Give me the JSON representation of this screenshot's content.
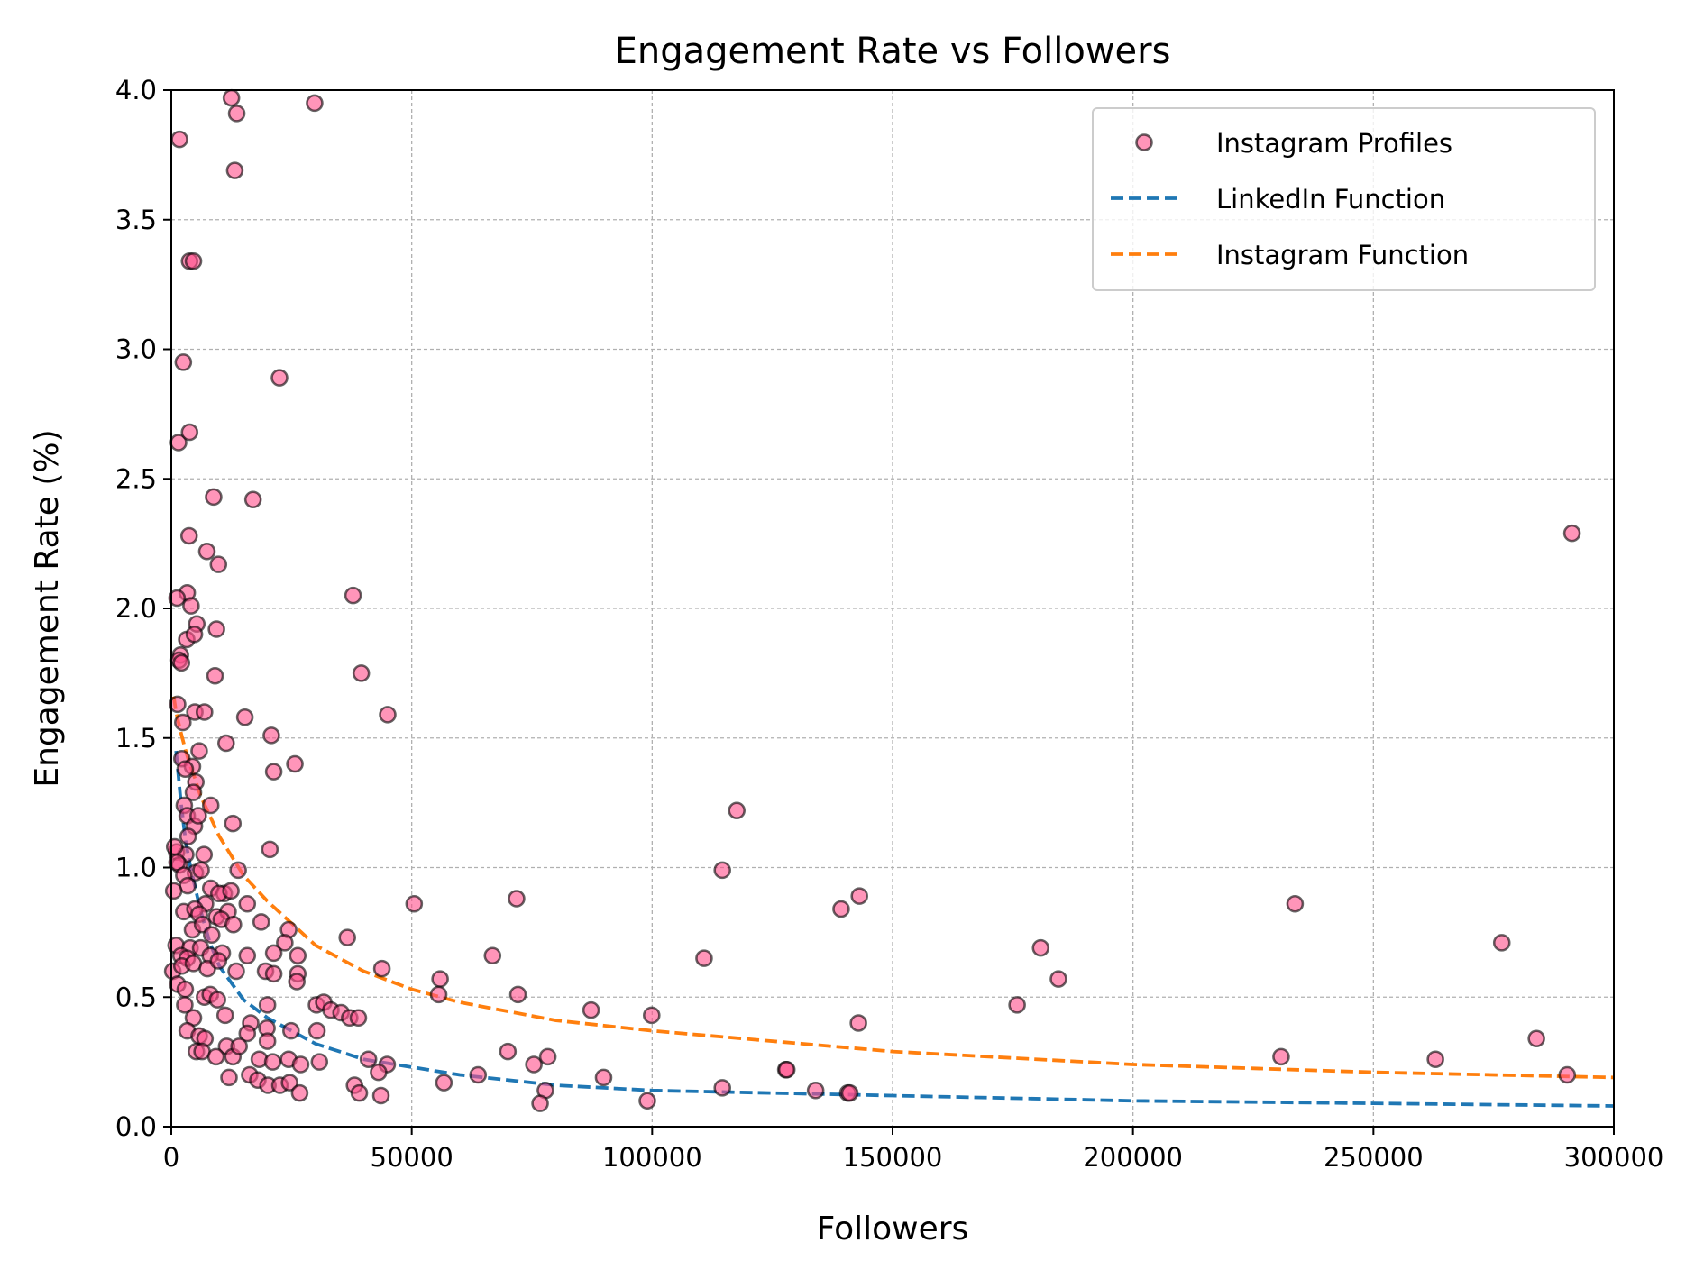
{
  "chart_data": {
    "type": "scatter",
    "title": "Engagement Rate vs Followers",
    "xlabel": "Followers",
    "ylabel": "Engagement Rate (%)",
    "xlim": [
      0,
      300000
    ],
    "ylim": [
      0,
      4.0
    ],
    "x_ticks": [
      "0",
      "50000",
      "100000",
      "150000",
      "200000",
      "250000",
      "300000"
    ],
    "y_ticks": [
      "0.0",
      "0.5",
      "1.0",
      "1.5",
      "2.0",
      "2.5",
      "3.0",
      "3.5",
      "4.0"
    ],
    "grid": true,
    "legend_position": "top-right",
    "series": [
      {
        "name": "Instagram Profiles",
        "kind": "scatter",
        "color": "#ff4f8b",
        "edge_color": "#000000",
        "points": [
          [
            1700,
            3.81
          ],
          [
            12500,
            3.97
          ],
          [
            13600,
            3.91
          ],
          [
            29800,
            3.95
          ],
          [
            13200,
            3.69
          ],
          [
            3800,
            3.34
          ],
          [
            4600,
            3.34
          ],
          [
            2500,
            2.95
          ],
          [
            22500,
            2.89
          ],
          [
            1500,
            2.64
          ],
          [
            3800,
            2.68
          ],
          [
            8800,
            2.43
          ],
          [
            17000,
            2.42
          ],
          [
            3700,
            2.28
          ],
          [
            7400,
            2.22
          ],
          [
            9800,
            2.17
          ],
          [
            3300,
            2.06
          ],
          [
            1200,
            2.04
          ],
          [
            4100,
            2.01
          ],
          [
            37800,
            2.05
          ],
          [
            5300,
            1.94
          ],
          [
            3200,
            1.88
          ],
          [
            9400,
            1.92
          ],
          [
            4800,
            1.9
          ],
          [
            1900,
            1.82
          ],
          [
            1600,
            1.8
          ],
          [
            2100,
            1.79
          ],
          [
            39500,
            1.75
          ],
          [
            9100,
            1.74
          ],
          [
            4900,
            1.6
          ],
          [
            6900,
            1.6
          ],
          [
            15300,
            1.58
          ],
          [
            45000,
            1.59
          ],
          [
            1300,
            1.63
          ],
          [
            2400,
            1.56
          ],
          [
            20800,
            1.51
          ],
          [
            11400,
            1.48
          ],
          [
            5800,
            1.45
          ],
          [
            2200,
            1.42
          ],
          [
            4400,
            1.39
          ],
          [
            21300,
            1.37
          ],
          [
            25700,
            1.4
          ],
          [
            5100,
            1.33
          ],
          [
            2900,
            1.38
          ],
          [
            4600,
            1.29
          ],
          [
            8200,
            1.24
          ],
          [
            2700,
            1.24
          ],
          [
            3300,
            1.2
          ],
          [
            4800,
            1.16
          ],
          [
            5600,
            1.2
          ],
          [
            12800,
            1.17
          ],
          [
            3500,
            1.12
          ],
          [
            20500,
            1.07
          ],
          [
            1100,
            1.06
          ],
          [
            3000,
            1.05
          ],
          [
            6800,
            1.05
          ],
          [
            700,
            1.08
          ],
          [
            1700,
            1.01
          ],
          [
            1200,
            1.02
          ],
          [
            5000,
            0.98
          ],
          [
            6200,
            0.99
          ],
          [
            13900,
            0.99
          ],
          [
            2600,
            0.97
          ],
          [
            117600,
            1.22
          ],
          [
            114600,
            0.99
          ],
          [
            3400,
            0.93
          ],
          [
            8200,
            0.92
          ],
          [
            11000,
            0.9
          ],
          [
            500,
            0.91
          ],
          [
            9900,
            0.9
          ],
          [
            12400,
            0.91
          ],
          [
            15800,
            0.86
          ],
          [
            7100,
            0.86
          ],
          [
            2600,
            0.83
          ],
          [
            4900,
            0.84
          ],
          [
            9400,
            0.81
          ],
          [
            11800,
            0.83
          ],
          [
            5800,
            0.82
          ],
          [
            50500,
            0.86
          ],
          [
            71800,
            0.88
          ],
          [
            143100,
            0.89
          ],
          [
            139300,
            0.84
          ],
          [
            233700,
            0.86
          ],
          [
            10400,
            0.8
          ],
          [
            12900,
            0.78
          ],
          [
            18700,
            0.79
          ],
          [
            4400,
            0.76
          ],
          [
            6500,
            0.78
          ],
          [
            8400,
            0.74
          ],
          [
            24400,
            0.76
          ],
          [
            23600,
            0.71
          ],
          [
            36600,
            0.73
          ],
          [
            1000,
            0.7
          ],
          [
            3900,
            0.69
          ],
          [
            6100,
            0.69
          ],
          [
            10600,
            0.67
          ],
          [
            2000,
            0.66
          ],
          [
            3300,
            0.65
          ],
          [
            8100,
            0.66
          ],
          [
            15800,
            0.66
          ],
          [
            21300,
            0.67
          ],
          [
            26300,
            0.66
          ],
          [
            66800,
            0.66
          ],
          [
            110800,
            0.65
          ],
          [
            180800,
            0.69
          ],
          [
            276700,
            0.71
          ],
          [
            300,
            0.6
          ],
          [
            2200,
            0.62
          ],
          [
            4600,
            0.63
          ],
          [
            7500,
            0.61
          ],
          [
            9800,
            0.64
          ],
          [
            13500,
            0.6
          ],
          [
            19600,
            0.6
          ],
          [
            21300,
            0.59
          ],
          [
            26300,
            0.59
          ],
          [
            26100,
            0.56
          ],
          [
            43800,
            0.61
          ],
          [
            55900,
            0.57
          ],
          [
            184500,
            0.57
          ],
          [
            1300,
            0.55
          ],
          [
            2900,
            0.53
          ],
          [
            6900,
            0.5
          ],
          [
            8100,
            0.51
          ],
          [
            9600,
            0.49
          ],
          [
            20000,
            0.47
          ],
          [
            30200,
            0.47
          ],
          [
            31700,
            0.48
          ],
          [
            33200,
            0.45
          ],
          [
            35300,
            0.44
          ],
          [
            55600,
            0.51
          ],
          [
            72100,
            0.51
          ],
          [
            175900,
            0.47
          ],
          [
            2800,
            0.47
          ],
          [
            4600,
            0.42
          ],
          [
            11200,
            0.43
          ],
          [
            16500,
            0.4
          ],
          [
            19900,
            0.38
          ],
          [
            24900,
            0.37
          ],
          [
            30300,
            0.37
          ],
          [
            37100,
            0.42
          ],
          [
            38900,
            0.42
          ],
          [
            3300,
            0.37
          ],
          [
            5800,
            0.35
          ],
          [
            7000,
            0.34
          ],
          [
            15800,
            0.36
          ],
          [
            20000,
            0.33
          ],
          [
            87300,
            0.45
          ],
          [
            99900,
            0.43
          ],
          [
            142900,
            0.4
          ],
          [
            283900,
            0.34
          ],
          [
            5200,
            0.29
          ],
          [
            6400,
            0.29
          ],
          [
            11500,
            0.31
          ],
          [
            12800,
            0.27
          ],
          [
            9300,
            0.27
          ],
          [
            14100,
            0.31
          ],
          [
            18300,
            0.26
          ],
          [
            21100,
            0.25
          ],
          [
            24400,
            0.26
          ],
          [
            26900,
            0.24
          ],
          [
            30800,
            0.25
          ],
          [
            41000,
            0.26
          ],
          [
            44900,
            0.24
          ],
          [
            70000,
            0.29
          ],
          [
            75400,
            0.24
          ],
          [
            78300,
            0.27
          ],
          [
            230800,
            0.27
          ],
          [
            262900,
            0.26
          ],
          [
            12000,
            0.19
          ],
          [
            16300,
            0.2
          ],
          [
            18000,
            0.18
          ],
          [
            20100,
            0.16
          ],
          [
            22600,
            0.16
          ],
          [
            24600,
            0.17
          ],
          [
            26700,
            0.13
          ],
          [
            38100,
            0.16
          ],
          [
            39100,
            0.13
          ],
          [
            43100,
            0.21
          ],
          [
            43600,
            0.12
          ],
          [
            56700,
            0.17
          ],
          [
            63800,
            0.2
          ],
          [
            77800,
            0.14
          ],
          [
            76700,
            0.09
          ],
          [
            89900,
            0.19
          ],
          [
            99000,
            0.1
          ],
          [
            114600,
            0.15
          ],
          [
            127800,
            0.22
          ],
          [
            134000,
            0.14
          ],
          [
            140700,
            0.13
          ],
          [
            141100,
            0.13
          ],
          [
            128000,
            0.22
          ],
          [
            290300,
            0.2
          ],
          [
            291300,
            2.29
          ]
        ]
      },
      {
        "name": "LinkedIn Function",
        "kind": "line",
        "color": "#1f77b4",
        "x": [
          1000,
          2000,
          3000,
          4000,
          5000,
          6000,
          8000,
          10000,
          15000,
          20000,
          30000,
          40000,
          60000,
          80000,
          100000,
          150000,
          200000,
          250000,
          300000
        ],
        "y": [
          1.45,
          1.25,
          1.1,
          1.0,
          0.92,
          0.84,
          0.71,
          0.62,
          0.49,
          0.42,
          0.32,
          0.26,
          0.2,
          0.16,
          0.14,
          0.12,
          0.1,
          0.09,
          0.08
        ]
      },
      {
        "name": "Instagram Function",
        "kind": "line",
        "color": "#ff7f0e",
        "x": [
          500,
          1000,
          2000,
          3000,
          4000,
          5000,
          6000,
          8000,
          10000,
          15000,
          20000,
          30000,
          40000,
          50000,
          60000,
          80000,
          100000,
          150000,
          200000,
          250000,
          300000
        ],
        "y": [
          1.66,
          1.6,
          1.52,
          1.45,
          1.39,
          1.34,
          1.28,
          1.2,
          1.12,
          0.97,
          0.87,
          0.7,
          0.6,
          0.53,
          0.48,
          0.41,
          0.37,
          0.29,
          0.24,
          0.21,
          0.19
        ]
      }
    ]
  }
}
